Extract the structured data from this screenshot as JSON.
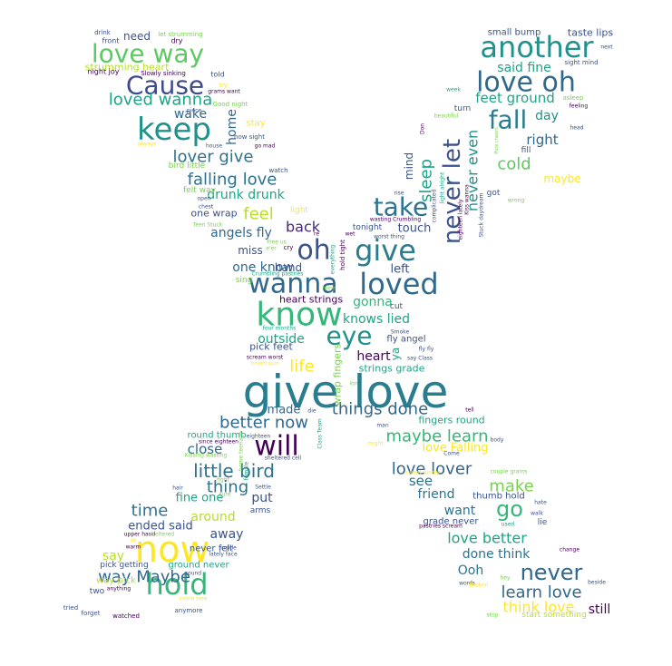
{
  "words": [
    {
      "text": "give love",
      "color": "#2a7d8e"
    },
    {
      "text": "know",
      "color": "#35b779"
    },
    {
      "text": "now",
      "color": "#fde725"
    },
    {
      "text": "wanna",
      "color": "#31688e"
    },
    {
      "text": "loved",
      "color": "#31688e"
    },
    {
      "text": "oh",
      "color": "#3b528b"
    },
    {
      "text": "give",
      "color": "#2a7d8e"
    },
    {
      "text": "eye",
      "color": "#21918c"
    },
    {
      "text": "keep",
      "color": "#21918c"
    },
    {
      "text": "hold",
      "color": "#35b779"
    },
    {
      "text": "will",
      "color": "#440154"
    },
    {
      "text": "take",
      "color": "#2c728e"
    },
    {
      "text": "another",
      "color": "#21918c"
    },
    {
      "text": "love oh",
      "color": "#31688e"
    },
    {
      "text": "love way",
      "color": "#5ec962"
    },
    {
      "text": "Cause",
      "color": "#3e4a89"
    },
    {
      "text": "never let",
      "color": "#3b528b"
    },
    {
      "text": "fall",
      "color": "#2a7d8e"
    },
    {
      "text": "never",
      "color": "#31688e"
    },
    {
      "text": "go",
      "color": "#35b779"
    },
    {
      "text": "loved wanna",
      "color": "#20a386"
    },
    {
      "text": "lover give",
      "color": "#2c728e"
    },
    {
      "text": "falling love",
      "color": "#2c728e"
    },
    {
      "text": "little bird",
      "color": "#2c728e"
    },
    {
      "text": "things done",
      "color": "#31688e"
    },
    {
      "text": "maybe learn",
      "color": "#35b779"
    },
    {
      "text": "better now",
      "color": "#31688e"
    },
    {
      "text": "love lover",
      "color": "#31688e"
    },
    {
      "text": "learn love",
      "color": "#31688e"
    },
    {
      "text": "think love",
      "color": "#fde725"
    },
    {
      "text": "way Maybe",
      "color": "#31688e"
    },
    {
      "text": "sleep",
      "color": "#20a386"
    },
    {
      "text": "never even",
      "color": "#21918c"
    },
    {
      "text": "cold",
      "color": "#5ec962"
    },
    {
      "text": "feel",
      "color": "#b8de29"
    },
    {
      "text": "life",
      "color": "#fde725"
    },
    {
      "text": "time",
      "color": "#2c728e"
    },
    {
      "text": "thing",
      "color": "#2c728e"
    },
    {
      "text": "make",
      "color": "#7ad151"
    },
    {
      "text": "back",
      "color": "#482878"
    },
    {
      "text": "love better",
      "color": "#20a386"
    },
    {
      "text": "feet ground",
      "color": "#20a386"
    },
    {
      "text": "said fine",
      "color": "#20a386"
    },
    {
      "text": "right",
      "color": "#31688e"
    },
    {
      "text": "day",
      "color": "#21918c"
    },
    {
      "text": "wake",
      "color": "#31688e"
    },
    {
      "text": "home",
      "color": "#31688e"
    },
    {
      "text": "close",
      "color": "#31688e"
    },
    {
      "text": "angels fly",
      "color": "#31688e"
    },
    {
      "text": "one know",
      "color": "#31688e"
    },
    {
      "text": "knows lied",
      "color": "#20a386"
    },
    {
      "text": "heart",
      "color": "#440154"
    },
    {
      "text": "see",
      "color": "#2c728e"
    },
    {
      "text": "want",
      "color": "#2c728e"
    },
    {
      "text": "done think",
      "color": "#2c728e"
    },
    {
      "text": "friend",
      "color": "#2c728e"
    },
    {
      "text": "Ooh",
      "color": "#2c728e"
    },
    {
      "text": "still",
      "color": "#440154"
    },
    {
      "text": "say",
      "color": "#b8de29"
    },
    {
      "text": "away",
      "color": "#3b528b"
    },
    {
      "text": "around",
      "color": "#b8de29"
    },
    {
      "text": "put",
      "color": "#3b528b"
    },
    {
      "text": "drunk drunk",
      "color": "#20a386"
    },
    {
      "text": "gonna",
      "color": "#35b779"
    },
    {
      "text": "outside",
      "color": "#20a386"
    },
    {
      "text": "left",
      "color": "#3b528b"
    },
    {
      "text": "touch",
      "color": "#3b528b"
    },
    {
      "text": "ended said",
      "color": "#3b528b"
    },
    {
      "text": "fine one",
      "color": "#20a386"
    },
    {
      "text": "love Falling",
      "color": "#fde725"
    },
    {
      "text": "made",
      "color": "#31688e"
    },
    {
      "text": "maybe",
      "color": "#fde725"
    },
    {
      "text": "mind",
      "color": "#3b528b"
    },
    {
      "text": "need",
      "color": "#3b528b"
    },
    {
      "text": "miss",
      "color": "#3b528b"
    },
    {
      "text": "hand",
      "color": "#3b528b"
    },
    {
      "text": "one wrap",
      "color": "#3b528b"
    },
    {
      "text": "ya",
      "color": "#20a386"
    },
    {
      "text": "strumming heart",
      "color": "#b8de29"
    },
    {
      "text": "small bump",
      "color": "#3b528b"
    },
    {
      "text": "taste lips",
      "color": "#3b528b"
    },
    {
      "text": "pick feet",
      "color": "#3b528b"
    },
    {
      "text": "heart strings",
      "color": "#440154"
    },
    {
      "text": "strings grade",
      "color": "#20a386"
    },
    {
      "text": "fly angel",
      "color": "#3b528b"
    },
    {
      "text": "wrap fingers",
      "color": "#7ad151"
    },
    {
      "text": "fingers round",
      "color": "#20a386"
    },
    {
      "text": "round thumb",
      "color": "#20a386"
    },
    {
      "text": "thumb hold",
      "color": "#3b528b"
    },
    {
      "text": "grade never",
      "color": "#3b528b"
    },
    {
      "text": "never felt",
      "color": "#3b528b"
    },
    {
      "text": "ground never",
      "color": "#20a386"
    },
    {
      "text": "pick getting",
      "color": "#3b528b"
    },
    {
      "text": "way pick",
      "color": "#b8de29"
    },
    {
      "text": "start something",
      "color": "#b8de29"
    },
    {
      "text": "stay",
      "color": "#fde725"
    },
    {
      "text": "turn",
      "color": "#3b528b"
    },
    {
      "text": "fill",
      "color": "#3b528b"
    },
    {
      "text": "got",
      "color": "#3b528b"
    },
    {
      "text": "lie",
      "color": "#3b528b"
    },
    {
      "text": "arms",
      "color": "#3b528b"
    },
    {
      "text": "two",
      "color": "#3b528b"
    },
    {
      "text": "cut",
      "color": "#3b528b"
    },
    {
      "text": "tonight",
      "color": "#3b528b"
    },
    {
      "text": "light",
      "color": "#fde725"
    },
    {
      "text": "told",
      "color": "#3b528b"
    },
    {
      "text": "sing",
      "color": "#7ad151"
    },
    {
      "text": "felt way",
      "color": "#7ad151"
    },
    {
      "text": "bird little",
      "color": "#7ad151"
    },
    {
      "text": "dry",
      "color": "#440154"
    },
    {
      "text": "front",
      "color": "#3b528b"
    },
    {
      "text": "drink",
      "color": "#3b528b"
    },
    {
      "text": "let strumming",
      "color": "#7ad151"
    },
    {
      "text": "night joy",
      "color": "#440154"
    },
    {
      "text": "Slowly sinking",
      "color": "#440154"
    },
    {
      "text": "try",
      "color": "#fde725"
    },
    {
      "text": "grams want",
      "color": "#440154"
    },
    {
      "text": "Good night",
      "color": "#7ad151"
    },
    {
      "text": "piece",
      "color": "#3b528b"
    },
    {
      "text": "now sight",
      "color": "#3b528b"
    },
    {
      "text": "go mad",
      "color": "#440154"
    },
    {
      "text": "always",
      "color": "#fde725"
    },
    {
      "text": "house",
      "color": "#3b528b"
    },
    {
      "text": "watch",
      "color": "#3b528b"
    },
    {
      "text": "open",
      "color": "#3b528b"
    },
    {
      "text": "chest",
      "color": "#3b528b"
    },
    {
      "text": "Teen Stuck",
      "color": "#7ad151"
    },
    {
      "text": "Free us",
      "color": "#7ad151"
    },
    {
      "text": "e'er",
      "color": "#7ad151"
    },
    {
      "text": "cry",
      "color": "#440154"
    },
    {
      "text": "re",
      "color": "#440154"
    },
    {
      "text": "wet",
      "color": "#440154"
    },
    {
      "text": "Crumbling pastries",
      "color": "#20a386"
    },
    {
      "text": "mine",
      "color": "#7ad151"
    },
    {
      "text": "four months",
      "color": "#20a386"
    },
    {
      "text": "scream worst",
      "color": "#440154"
    },
    {
      "text": "tonight pure",
      "color": "#fde725"
    },
    {
      "text": "week",
      "color": "#20a386"
    },
    {
      "text": "sight mind",
      "color": "#3b528b"
    },
    {
      "text": "next",
      "color": "#3b528b"
    },
    {
      "text": "asleep",
      "color": "#7ad151"
    },
    {
      "text": "feeling",
      "color": "#440154"
    },
    {
      "text": "head",
      "color": "#3b528b"
    },
    {
      "text": "beautiful",
      "color": "#7ad151"
    },
    {
      "text": "Don",
      "color": "#440154"
    },
    {
      "text": "wasting Crumbling",
      "color": "#440154"
    },
    {
      "text": "worst thing",
      "color": "#3b528b"
    },
    {
      "text": "rise",
      "color": "#3b528b"
    },
    {
      "text": "wrong",
      "color": "#7ad151"
    },
    {
      "text": "tell",
      "color": "#440154"
    },
    {
      "text": "man",
      "color": "#3b528b"
    },
    {
      "text": "body",
      "color": "#3b528b"
    },
    {
      "text": "Come",
      "color": "#3b528b"
    },
    {
      "text": "couple grams",
      "color": "#7ad151"
    },
    {
      "text": "hate",
      "color": "#3b528b"
    },
    {
      "text": "walk",
      "color": "#3b528b"
    },
    {
      "text": "used",
      "color": "#20a386"
    },
    {
      "text": "change",
      "color": "#440154"
    },
    {
      "text": "beside",
      "color": "#3b528b"
    },
    {
      "text": "words",
      "color": "#3b528b"
    },
    {
      "text": "stop",
      "color": "#7ad151"
    },
    {
      "text": "hey",
      "color": "#7ad151"
    },
    {
      "text": "Broken",
      "color": "#fde725"
    },
    {
      "text": "pastries scream",
      "color": "#440154"
    },
    {
      "text": "Smoke",
      "color": "#3b528b"
    },
    {
      "text": "fly fly",
      "color": "#3b528b"
    },
    {
      "text": "say Class",
      "color": "#3b528b"
    },
    {
      "text": "Ion",
      "color": "#7ad151"
    },
    {
      "text": "die",
      "color": "#3b528b"
    },
    {
      "text": "since eighteen",
      "color": "#440154"
    },
    {
      "text": "Kissing wasting",
      "color": "#7ad151"
    },
    {
      "text": "sheltered cell",
      "color": "#3b528b"
    },
    {
      "text": "hair",
      "color": "#3b528b"
    },
    {
      "text": "Settle",
      "color": "#3b528b"
    },
    {
      "text": "fight",
      "color": "#7ad151"
    },
    {
      "text": "sure",
      "color": "#7ad151"
    },
    {
      "text": "upper hand",
      "color": "#440154"
    },
    {
      "text": "sheltered",
      "color": "#7ad151"
    },
    {
      "text": "ok",
      "color": "#fde725"
    },
    {
      "text": "warm",
      "color": "#440154"
    },
    {
      "text": "inside",
      "color": "#3b528b"
    },
    {
      "text": "lately face",
      "color": "#3b528b"
    },
    {
      "text": "sound",
      "color": "#3b528b"
    },
    {
      "text": "anything",
      "color": "#440154"
    },
    {
      "text": "come tree",
      "color": "#fde725"
    },
    {
      "text": "tried",
      "color": "#3b528b"
    },
    {
      "text": "forget",
      "color": "#3b528b"
    },
    {
      "text": "watched",
      "color": "#440154"
    },
    {
      "text": "anymore",
      "color": "#3b528b"
    },
    {
      "text": "might",
      "color": "#fde725"
    },
    {
      "text": "complicated",
      "color": "#3b528b"
    },
    {
      "text": "hold tight",
      "color": "#440154"
    },
    {
      "text": "everything",
      "color": "#20a386"
    },
    {
      "text": "Class Team",
      "color": "#20a386"
    },
    {
      "text": "Stuck daydream",
      "color": "#3b528b"
    },
    {
      "text": "Kiss wanna",
      "color": "#440154"
    },
    {
      "text": "eighteen lately",
      "color": "#440154"
    },
    {
      "text": "light alright",
      "color": "#20a386"
    },
    {
      "text": "home teenage",
      "color": "#7ad151"
    },
    {
      "text": "Pure cheers",
      "color": "#7ad151"
    },
    {
      "text": "female",
      "color": "#20a386"
    },
    {
      "text": "sweet lonely",
      "color": "#fde725"
    },
    {
      "text": "eighteen",
      "color": "#3b528b"
    }
  ]
}
